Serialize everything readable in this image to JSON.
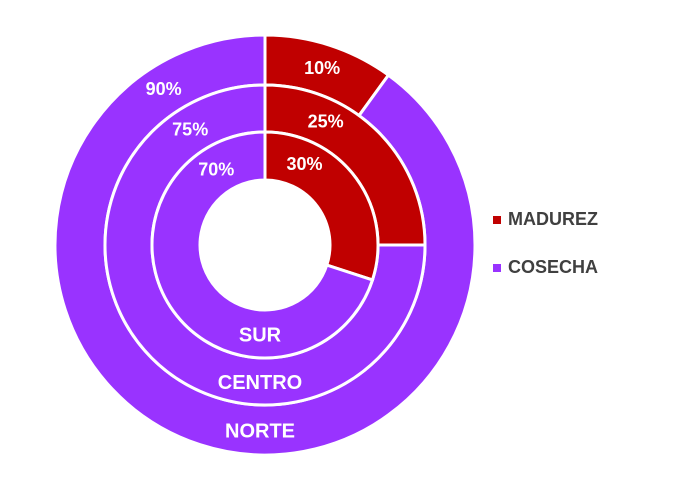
{
  "chart_data": {
    "type": "donut",
    "categories": [
      "NORTE",
      "CENTRO",
      "SUR"
    ],
    "series": [
      {
        "name": "MADUREZ",
        "color": "#c00000",
        "values": [
          10,
          25,
          30
        ],
        "value_labels": [
          "10%",
          "25%",
          "30%"
        ]
      },
      {
        "name": "COSECHA",
        "color": "#9933ff",
        "values": [
          90,
          75,
          70
        ],
        "value_labels": [
          "90%",
          "75%",
          "70%"
        ]
      }
    ],
    "legend": "right"
  }
}
